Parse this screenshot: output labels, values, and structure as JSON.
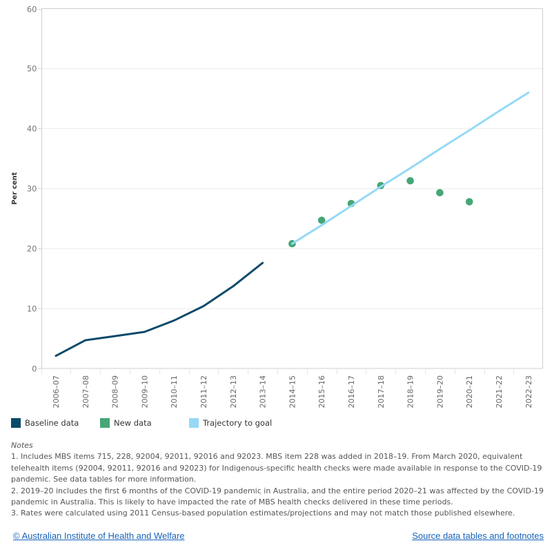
{
  "chart_data": {
    "type": "line",
    "title": "",
    "xlabel": "",
    "ylabel": "Per cent",
    "ylim": [
      0,
      60
    ],
    "yticks": [
      "0",
      "10",
      "20",
      "30",
      "40",
      "50",
      "60"
    ],
    "ytick_values": [
      0,
      10,
      20,
      30,
      40,
      50,
      60
    ],
    "grid": true,
    "categories": [
      "2006–07",
      "2007–08",
      "2008–09",
      "2009–10",
      "2010–11",
      "2011–12",
      "2012–13",
      "2013–14",
      "2014–15",
      "2015–16",
      "2016–17",
      "2017–18",
      "2018–19",
      "2019–20",
      "2020–21",
      "2021–22",
      "2022–23"
    ],
    "series": [
      {
        "name": "Baseline data",
        "kind": "line",
        "color": "#0b4a6b",
        "values": [
          2.1,
          4.7,
          5.4,
          6.1,
          8.0,
          10.4,
          13.7,
          17.6,
          null,
          null,
          null,
          null,
          null,
          null,
          null,
          null,
          null
        ]
      },
      {
        "name": "New data",
        "kind": "scatter",
        "color": "#45a776",
        "values": [
          null,
          null,
          null,
          null,
          null,
          null,
          null,
          null,
          20.8,
          24.7,
          27.5,
          30.5,
          31.3,
          29.3,
          27.8,
          null,
          null
        ]
      },
      {
        "name": "Trajectory to goal",
        "kind": "line",
        "color": "#95d9f5",
        "values": [
          null,
          null,
          null,
          null,
          null,
          null,
          null,
          null,
          20.8,
          23.9,
          27.1,
          30.3,
          33.4,
          36.6,
          39.7,
          42.9,
          46.0
        ]
      }
    ],
    "legend_position": "bottom-left"
  },
  "legend": [
    {
      "label": "Baseline data",
      "color": "#0b4a6b"
    },
    {
      "label": "New data",
      "color": "#45a776"
    },
    {
      "label": "Trajectory to goal",
      "color": "#95d9f5"
    }
  ],
  "notes": {
    "title": "Notes",
    "lines": [
      "1. Includes MBS items 715, 228, 92004, 92011, 92016 and 92023. MBS item 228 was added in 2018–19. From March 2020, equivalent telehealth items (92004, 92011, 92016 and 92023) for Indigenous-specific health checks were made available in response to the COVID-19 pandemic. See data tables for more information.",
      "2. 2019–20 includes the first 6 months of the COVID-19 pandemic in Australia, and the entire period 2020–21 was affected by the COVID-19 pandemic in Australia. This is likely to have impacted the rate of MBS health checks delivered in these time periods.",
      "3. Rates were calculated using 2011 Census-based population estimates/projections and may not match those published elsewhere."
    ]
  },
  "footer": {
    "copyright_link": "© Australian Institute of Health and Welfare",
    "source_link": "Source data tables and footnotes"
  }
}
